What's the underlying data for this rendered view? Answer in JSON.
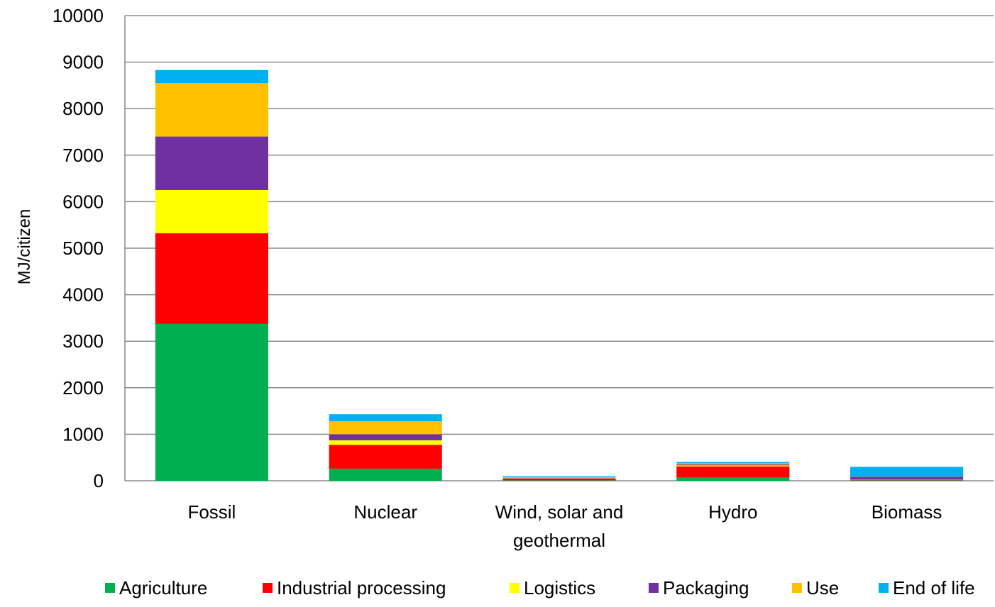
{
  "chart_data": {
    "type": "bar",
    "stacked": true,
    "title": "",
    "xlabel": "",
    "ylabel": "MJ/citizen",
    "ylim": [
      0,
      10000
    ],
    "yticks": [
      0,
      1000,
      2000,
      3000,
      4000,
      5000,
      6000,
      7000,
      8000,
      9000,
      10000
    ],
    "grid": true,
    "legend_position": "bottom",
    "categories": [
      "Fossil",
      "Nuclear",
      "Wind, solar and geothermal",
      "Hydro",
      "Biomass"
    ],
    "series": [
      {
        "name": "Agriculture",
        "color": "#00b050",
        "values": [
          3370,
          260,
          10,
          70,
          10
        ]
      },
      {
        "name": "Industrial processing",
        "color": "#ff0000",
        "values": [
          1950,
          510,
          40,
          240,
          10
        ]
      },
      {
        "name": "Logistics",
        "color": "#ffff00",
        "values": [
          930,
          100,
          5,
          20,
          5
        ]
      },
      {
        "name": "Packaging",
        "color": "#7030a0",
        "values": [
          1150,
          130,
          5,
          20,
          60
        ]
      },
      {
        "name": "Use",
        "color": "#ffc000",
        "values": [
          1150,
          280,
          20,
          25,
          5
        ]
      },
      {
        "name": "End of life",
        "color": "#00b0f0",
        "values": [
          280,
          150,
          20,
          30,
          210
        ]
      }
    ]
  }
}
